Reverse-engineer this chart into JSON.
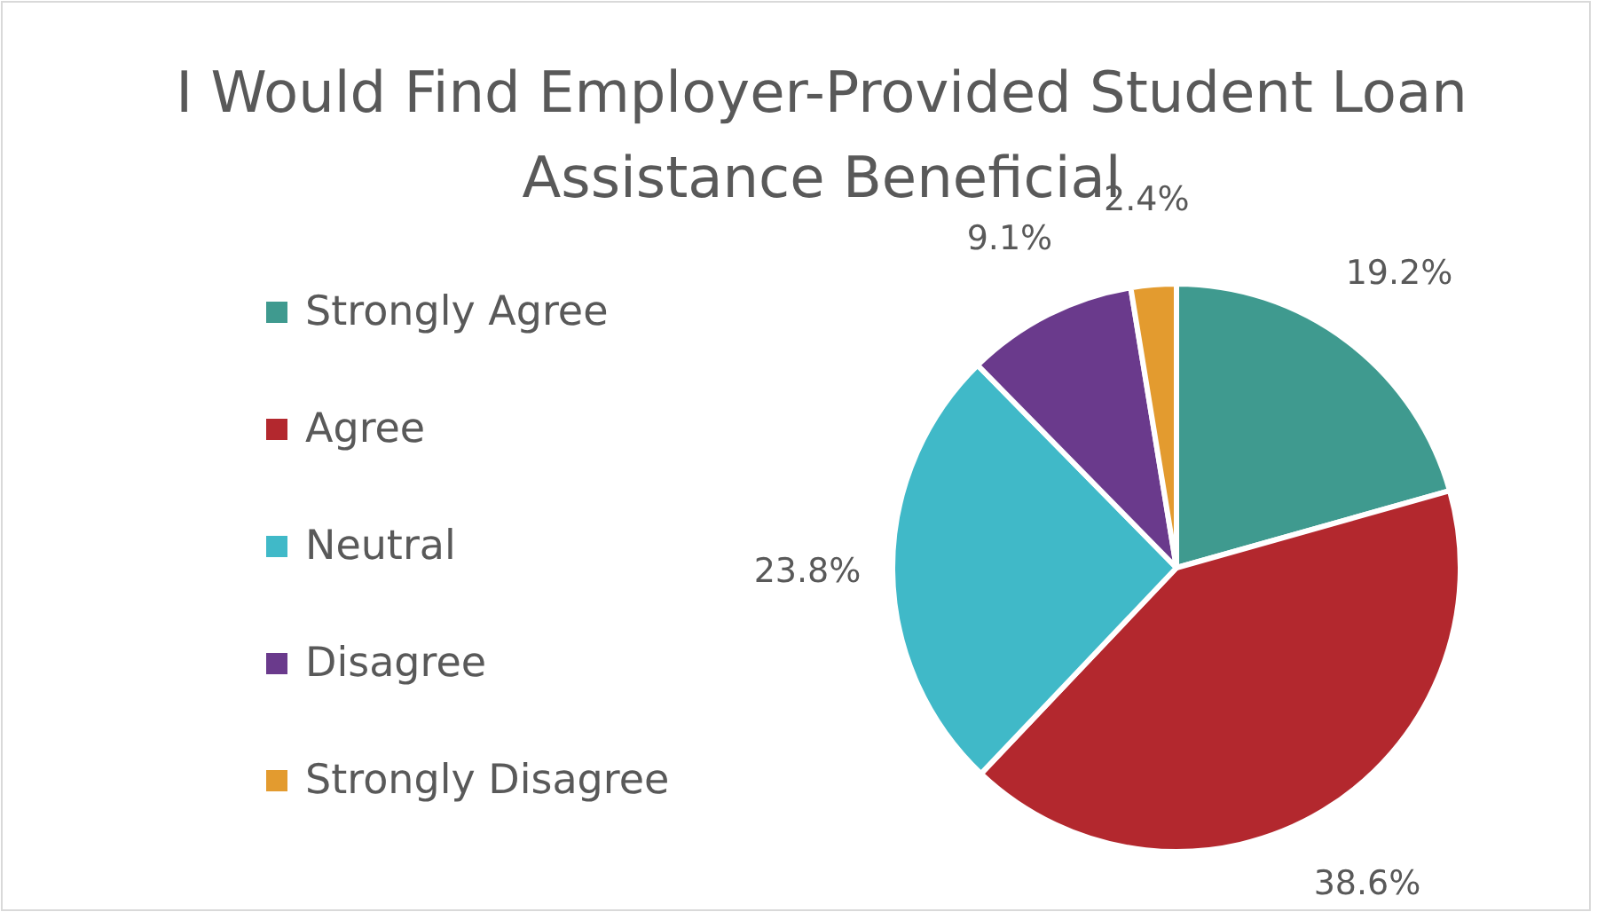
{
  "chart_data": {
    "type": "pie",
    "title": "I Would Find Employer-Provided Student Loan Assistance Beneficial",
    "categories": [
      "Strongly Agree",
      "Agree",
      "Neutral",
      "Disagree",
      "Strongly Disagree"
    ],
    "values": [
      19.2,
      38.6,
      23.8,
      9.1,
      2.4
    ],
    "colors": [
      "#3f9a8f",
      "#b3282e",
      "#40b9c8",
      "#6a3a8c",
      "#e39b2f"
    ],
    "value_labels": [
      "19.2%",
      "38.6%",
      "23.8%",
      "9.1%",
      "2.4%"
    ],
    "legend": "left"
  }
}
